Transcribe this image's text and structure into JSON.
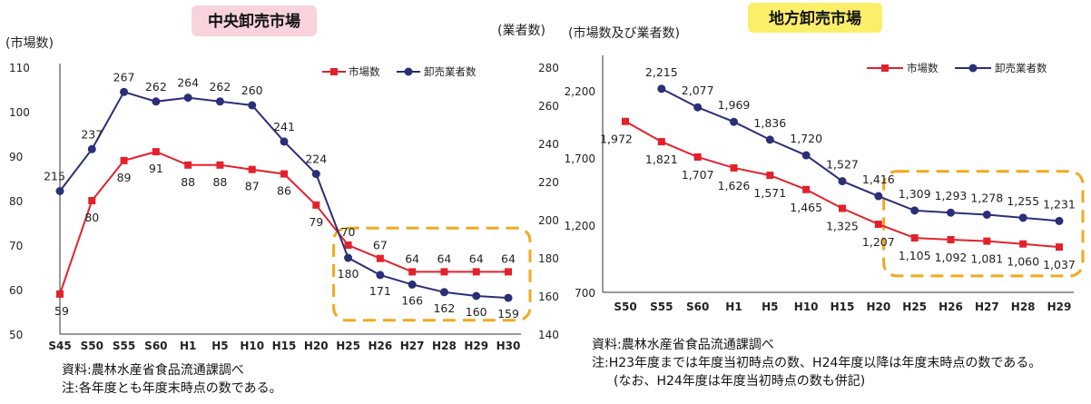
{
  "colors": {
    "market_series": "#e3212b",
    "wholesaler_series": "#2a2f78",
    "dashed_box": "#f2a91e",
    "left_title_bg": "#f8d3dc",
    "right_title_bg": "#fbef6a"
  },
  "chart_data": [
    {
      "type": "line",
      "title": "中央卸売市場",
      "ylabel": "(市場数)",
      "y2label": "(業者数)",
      "categories": [
        "S45",
        "S50",
        "S55",
        "S60",
        "H1",
        "H5",
        "H10",
        "H15",
        "H20",
        "H25",
        "H26",
        "H27",
        "H28",
        "H29",
        "H30"
      ],
      "ylim": [
        50,
        110
      ],
      "yticks": [
        "110",
        "100",
        "90",
        "80",
        "70",
        "60",
        "50"
      ],
      "y2lim": [
        140,
        280
      ],
      "y2ticks": [
        "280",
        "260",
        "240",
        "220",
        "200",
        "180",
        "160",
        "140"
      ],
      "series": [
        {
          "name": "市場数",
          "axis": "left",
          "values": [
            59,
            80,
            89,
            91,
            88,
            88,
            87,
            86,
            79,
            70,
            67,
            64,
            64,
            64,
            64
          ]
        },
        {
          "name": "卸売業者数",
          "axis": "right",
          "values": [
            215,
            237,
            267,
            262,
            264,
            262,
            260,
            241,
            224,
            180,
            171,
            166,
            162,
            160,
            159
          ]
        }
      ],
      "legend_position": "top-right",
      "dashed_box_categories": [
        "H25",
        "H30"
      ],
      "notes": [
        "資料:農林水産省食品流通課調べ",
        "注:各年度とも年度末時点の数である。"
      ]
    },
    {
      "type": "line",
      "title": "地方卸売市場",
      "ylabel": "(市場数及び業者数)",
      "categories": [
        "S50",
        "S55",
        "S60",
        "H1",
        "H5",
        "H10",
        "H15",
        "H20",
        "H25",
        "H26",
        "H27",
        "H28",
        "H29"
      ],
      "ylim": [
        700,
        2450
      ],
      "yticks": [
        "2,200",
        "1,700",
        "1,200",
        "700"
      ],
      "series": [
        {
          "name": "市場数",
          "values": [
            1972,
            1821,
            1707,
            1626,
            1571,
            1465,
            1325,
            1207,
            1105,
            1092,
            1081,
            1060,
            1037
          ]
        },
        {
          "name": "卸売業者数",
          "values": [
            null,
            2215,
            2077,
            1969,
            1836,
            1720,
            1527,
            1416,
            1309,
            1293,
            1278,
            1255,
            1231
          ]
        }
      ],
      "legend_position": "top-right",
      "dashed_box_categories": [
        "H25",
        "H29"
      ],
      "notes": [
        "資料:農林水産省食品流通課調べ",
        "注:H23年度までは年度当初時点の数、H24年度以降は年度末時点の数である。",
        "(なお、H24年度は年度当初時点の数も併記)"
      ]
    }
  ]
}
